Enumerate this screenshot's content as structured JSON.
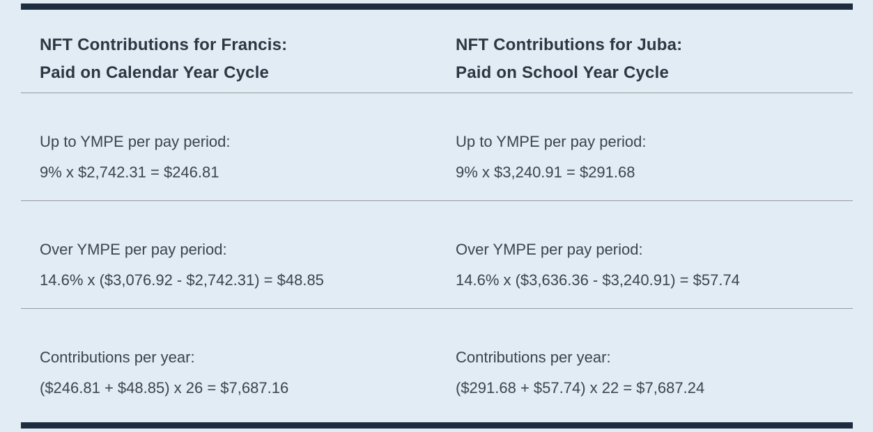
{
  "theme": {
    "background": "#e1ecf4",
    "accent_bar_color": "#1e2c40",
    "heading_color": "#2d3643",
    "text_color": "#3d444c",
    "divider_color": "#97999d"
  },
  "columns": [
    {
      "heading_line1": "NFT Contributions for Francis:",
      "heading_line2": "Paid on Calendar Year Cycle",
      "rows": [
        {
          "label": "Up to YMPE per pay period:",
          "formula": "9% x $2,742.31 = $246.81"
        },
        {
          "label": "Over YMPE per pay period:",
          "formula": "14.6% x ($3,076.92 - $2,742.31) = $48.85"
        },
        {
          "label": "Contributions per year:",
          "formula": "($246.81 + $48.85) x 26 = $7,687.16"
        }
      ]
    },
    {
      "heading_line1": "NFT Contributions for Juba:",
      "heading_line2": "Paid on School Year Cycle",
      "rows": [
        {
          "label": "Up to YMPE per pay period:",
          "formula": "9% x $3,240.91 = $291.68"
        },
        {
          "label": "Over YMPE per pay period:",
          "formula": "14.6% x ($3,636.36 - $3,240.91) = $57.74"
        },
        {
          "label": "Contributions per year:",
          "formula": "($291.68 + $57.74) x 22 = $7,687.24"
        }
      ]
    }
  ]
}
